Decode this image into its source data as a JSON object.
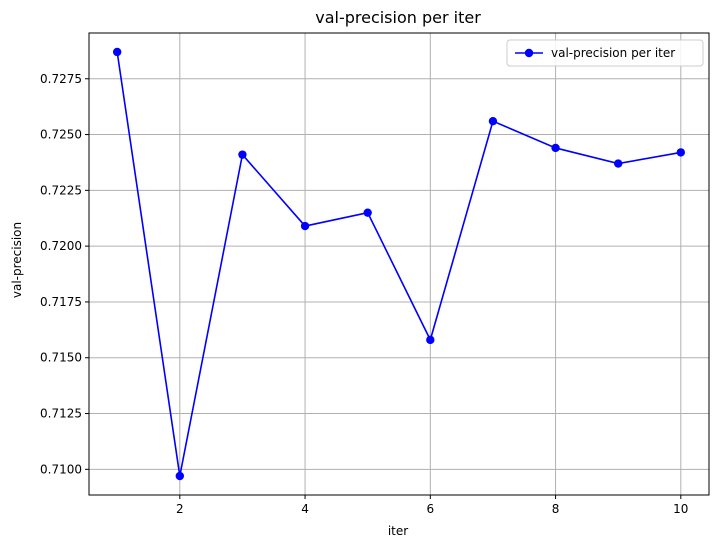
{
  "chart_data": {
    "type": "line",
    "title": "val-precision per iter",
    "xlabel": "iter",
    "ylabel": "val-precision",
    "xlim": [
      0.55,
      10.45
    ],
    "ylim": [
      0.70885,
      0.72955
    ],
    "xticks": [
      2,
      4,
      6,
      8,
      10
    ],
    "xtick_labels": [
      "2",
      "4",
      "6",
      "8",
      "10"
    ],
    "yticks": [
      0.71,
      0.7125,
      0.715,
      0.7175,
      0.72,
      0.7225,
      0.725,
      0.7275
    ],
    "ytick_labels": [
      "0.7100",
      "0.7125",
      "0.7150",
      "0.7175",
      "0.7200",
      "0.7225",
      "0.7250",
      "0.7275"
    ],
    "grid": true,
    "legend_position": "top-right",
    "series": [
      {
        "name": "val-precision per iter",
        "color": "#0000ff",
        "marker": "circle",
        "x": [
          1,
          2,
          3,
          4,
          5,
          6,
          7,
          8,
          9,
          10
        ],
        "y": [
          0.7287,
          0.7097,
          0.7241,
          0.7209,
          0.7215,
          0.7158,
          0.7256,
          0.7244,
          0.7237,
          0.7242
        ]
      }
    ]
  }
}
